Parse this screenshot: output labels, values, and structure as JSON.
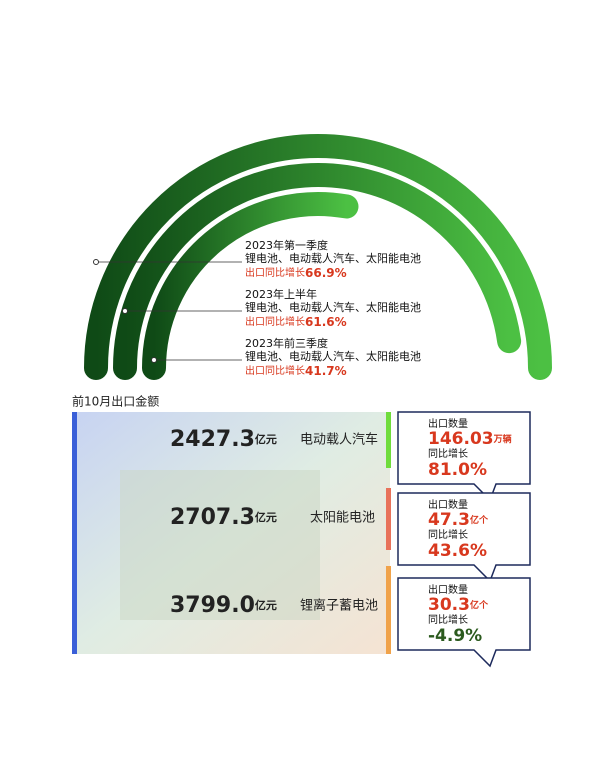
{
  "arcs": [
    {
      "period": "2023年第一季度",
      "products": "锂电池、电动载人汽车、太阳能电池",
      "growth_prefix": "出口同比增长",
      "growth": "66.9%"
    },
    {
      "period": "2023年上半年",
      "products": "锂电池、电动载人汽车、太阳能电池",
      "growth_prefix": "出口同比增长",
      "growth": "61.6%"
    },
    {
      "period": "2023年前三季度",
      "products": "锂电池、电动载人汽车、太阳能电池",
      "growth_prefix": "出口同比增长",
      "growth": "41.7%"
    }
  ],
  "section_title": "前10月出口金额",
  "items": [
    {
      "amount": "2427.3",
      "amount_unit": "亿元",
      "name": "电动载人汽车",
      "qty_label": "出口数量",
      "qty": "146.03",
      "qty_unit": "万辆",
      "yoy_label": "同比增长",
      "yoy": "81.0%"
    },
    {
      "amount": "2707.3",
      "amount_unit": "亿元",
      "name": "太阳能电池",
      "qty_label": "出口数量",
      "qty": "47.3",
      "qty_unit": "亿个",
      "yoy_label": "同比增长",
      "yoy": "43.6%"
    },
    {
      "amount": "3799.0",
      "amount_unit": "亿元",
      "name": "锂离子蓄电池",
      "qty_label": "出口数量",
      "qty": "30.3",
      "qty_unit": "亿个",
      "yoy_label": "同比增长",
      "yoy": "-4.9%"
    }
  ]
}
